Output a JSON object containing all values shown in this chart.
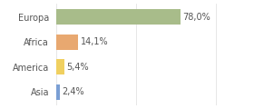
{
  "categories": [
    "Europa",
    "Africa",
    "America",
    "Asia"
  ],
  "values": [
    78.0,
    14.1,
    5.4,
    2.4
  ],
  "bar_colors": [
    "#a8bc8a",
    "#e8a870",
    "#f0d060",
    "#7b9fd4"
  ],
  "labels": [
    "78,0%",
    "14,1%",
    "5,4%",
    "2,4%"
  ],
  "xlim": [
    0,
    105
  ],
  "background_color": "#ffffff",
  "text_color": "#555555",
  "bar_height": 0.62,
  "label_fontsize": 7.0,
  "tick_label_fontsize": 7.0,
  "grid_color": "#dddddd",
  "figsize": [
    2.8,
    1.2
  ],
  "dpi": 100
}
